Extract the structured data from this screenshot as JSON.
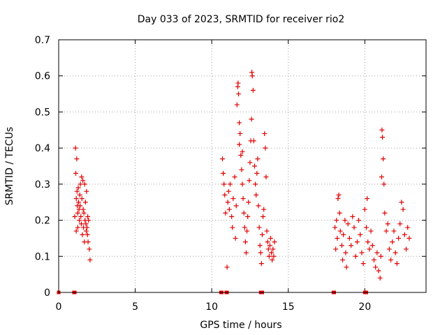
{
  "colors": {
    "series": "#e00000",
    "grid": "#a0a0a0",
    "axis": "#000000"
  },
  "chart_data": {
    "type": "scatter",
    "title": "Day 033 of 2023, SRMTID for receiver rio2",
    "xlabel": "GPS time / hours",
    "ylabel": "SRMTID / TECUs",
    "xlim": [
      0,
      24
    ],
    "ylim": [
      0,
      0.7
    ],
    "grid": true,
    "marker": "+",
    "xticks": [
      0,
      5,
      10,
      15,
      20
    ],
    "xtick_labels": [
      "0",
      "5",
      "10",
      "15",
      "20"
    ],
    "yticks": [
      0,
      0.1,
      0.2,
      0.3,
      0.4,
      0.5,
      0.6,
      0.7
    ],
    "ytick_labels": [
      "0",
      "0.1",
      "0.2",
      "0.3",
      "0.4",
      "0.5",
      "0.6",
      "0.7"
    ],
    "series": [
      {
        "name": "SRMTID",
        "marker": "+",
        "points": [
          [
            1.05,
            0.21
          ],
          [
            1.1,
            0.4
          ],
          [
            1.12,
            0.33
          ],
          [
            1.15,
            0.26
          ],
          [
            1.18,
            0.37
          ],
          [
            1.2,
            0.28
          ],
          [
            1.22,
            0.24
          ],
          [
            1.25,
            0.22
          ],
          [
            1.28,
            0.29
          ],
          [
            1.3,
            0.25
          ],
          [
            1.33,
            0.23
          ],
          [
            1.35,
            0.2
          ],
          [
            1.38,
            0.27
          ],
          [
            1.4,
            0.24
          ],
          [
            1.42,
            0.3
          ],
          [
            1.45,
            0.21
          ],
          [
            1.48,
            0.19
          ],
          [
            1.5,
            0.32
          ],
          [
            1.52,
            0.26
          ],
          [
            1.55,
            0.16
          ],
          [
            1.58,
            0.31
          ],
          [
            1.6,
            0.23
          ],
          [
            1.62,
            0.18
          ],
          [
            1.65,
            0.22
          ],
          [
            1.68,
            0.14
          ],
          [
            1.7,
            0.3
          ],
          [
            1.72,
            0.2
          ],
          [
            1.75,
            0.25
          ],
          [
            1.78,
            0.19
          ],
          [
            1.8,
            0.17
          ],
          [
            1.82,
            0.28
          ],
          [
            1.85,
            0.18
          ],
          [
            1.88,
            0.16
          ],
          [
            1.9,
            0.21
          ],
          [
            1.92,
            0.14
          ],
          [
            1.95,
            0.2
          ],
          [
            2.0,
            0.12
          ],
          [
            2.05,
            0.09
          ],
          [
            1.15,
            0.17
          ],
          [
            1.25,
            0.18
          ],
          [
            10.7,
            0.37
          ],
          [
            10.75,
            0.33
          ],
          [
            10.8,
            0.3
          ],
          [
            10.85,
            0.27
          ],
          [
            10.9,
            0.22
          ],
          [
            11.0,
            0.07
          ],
          [
            11.05,
            0.25
          ],
          [
            11.1,
            0.28
          ],
          [
            11.15,
            0.23
          ],
          [
            11.2,
            0.3
          ],
          [
            11.3,
            0.21
          ],
          [
            11.35,
            0.18
          ],
          [
            11.4,
            0.26
          ],
          [
            11.5,
            0.32
          ],
          [
            11.55,
            0.15
          ],
          [
            11.6,
            0.24
          ],
          [
            11.65,
            0.52
          ],
          [
            11.7,
            0.57
          ],
          [
            11.72,
            0.58
          ],
          [
            11.75,
            0.55
          ],
          [
            11.8,
            0.47
          ],
          [
            11.85,
            0.44
          ],
          [
            11.9,
            0.38
          ],
          [
            11.95,
            0.34
          ],
          [
            12.0,
            0.3
          ],
          [
            12.05,
            0.26
          ],
          [
            12.1,
            0.22
          ],
          [
            12.15,
            0.18
          ],
          [
            12.2,
            0.14
          ],
          [
            12.25,
            0.11
          ],
          [
            12.3,
            0.17
          ],
          [
            12.35,
            0.21
          ],
          [
            12.4,
            0.25
          ],
          [
            12.45,
            0.31
          ],
          [
            12.5,
            0.36
          ],
          [
            12.55,
            0.42
          ],
          [
            12.6,
            0.48
          ],
          [
            12.62,
            0.61
          ],
          [
            12.65,
            0.6
          ],
          [
            12.7,
            0.56
          ],
          [
            12.75,
            0.42
          ],
          [
            12.8,
            0.35
          ],
          [
            12.85,
            0.3
          ],
          [
            12.9,
            0.27
          ],
          [
            12.95,
            0.33
          ],
          [
            13.0,
            0.37
          ],
          [
            13.05,
            0.24
          ],
          [
            13.1,
            0.18
          ],
          [
            13.15,
            0.13
          ],
          [
            13.2,
            0.11
          ],
          [
            13.25,
            0.08
          ],
          [
            13.3,
            0.16
          ],
          [
            13.35,
            0.21
          ],
          [
            13.4,
            0.23
          ],
          [
            13.45,
            0.44
          ],
          [
            13.5,
            0.4
          ],
          [
            13.55,
            0.32
          ],
          [
            13.6,
            0.17
          ],
          [
            13.65,
            0.14
          ],
          [
            13.7,
            0.12
          ],
          [
            13.75,
            0.1
          ],
          [
            13.8,
            0.13
          ],
          [
            13.85,
            0.15
          ],
          [
            13.9,
            0.11
          ],
          [
            13.95,
            0.09
          ],
          [
            14.0,
            0.12
          ],
          [
            14.05,
            0.1
          ],
          [
            14.1,
            0.14
          ],
          [
            11.8,
            0.41
          ],
          [
            12.0,
            0.39
          ],
          [
            18.05,
            0.18
          ],
          [
            18.1,
            0.12
          ],
          [
            18.15,
            0.2
          ],
          [
            18.2,
            0.15
          ],
          [
            18.25,
            0.26
          ],
          [
            18.3,
            0.27
          ],
          [
            18.35,
            0.22
          ],
          [
            18.4,
            0.17
          ],
          [
            18.5,
            0.13
          ],
          [
            18.55,
            0.09
          ],
          [
            18.6,
            0.16
          ],
          [
            18.7,
            0.2
          ],
          [
            18.75,
            0.11
          ],
          [
            18.8,
            0.07
          ],
          [
            18.9,
            0.19
          ],
          [
            19.0,
            0.15
          ],
          [
            19.1,
            0.13
          ],
          [
            19.2,
            0.21
          ],
          [
            19.3,
            0.18
          ],
          [
            19.4,
            0.1
          ],
          [
            19.5,
            0.14
          ],
          [
            19.6,
            0.2
          ],
          [
            19.7,
            0.16
          ],
          [
            19.8,
            0.11
          ],
          [
            19.9,
            0.08
          ],
          [
            20.0,
            0.23
          ],
          [
            20.1,
            0.18
          ],
          [
            20.15,
            0.26
          ],
          [
            20.2,
            0.14
          ],
          [
            20.3,
            0.12
          ],
          [
            20.4,
            0.17
          ],
          [
            20.5,
            0.13
          ],
          [
            20.6,
            0.09
          ],
          [
            20.7,
            0.07
          ],
          [
            20.8,
            0.11
          ],
          [
            20.9,
            0.06
          ],
          [
            21.0,
            0.04
          ],
          [
            21.05,
            0.1
          ],
          [
            21.1,
            0.32
          ],
          [
            21.12,
            0.45
          ],
          [
            21.15,
            0.43
          ],
          [
            21.2,
            0.37
          ],
          [
            21.25,
            0.3
          ],
          [
            21.3,
            0.22
          ],
          [
            21.4,
            0.17
          ],
          [
            21.5,
            0.19
          ],
          [
            21.6,
            0.12
          ],
          [
            21.7,
            0.09
          ],
          [
            21.8,
            0.14
          ],
          [
            21.9,
            0.17
          ],
          [
            22.0,
            0.11
          ],
          [
            22.1,
            0.08
          ],
          [
            22.2,
            0.15
          ],
          [
            22.3,
            0.19
          ],
          [
            22.4,
            0.25
          ],
          [
            22.5,
            0.23
          ],
          [
            22.6,
            0.16
          ],
          [
            22.7,
            0.12
          ],
          [
            22.8,
            0.18
          ],
          [
            22.9,
            0.15
          ]
        ]
      }
    ],
    "data_gaps_at_zero": [
      0,
      1.0,
      1.05,
      10.6,
      10.65,
      10.95,
      11.0,
      13.2,
      13.3,
      17.95,
      18.0,
      20.0,
      20.1
    ]
  }
}
